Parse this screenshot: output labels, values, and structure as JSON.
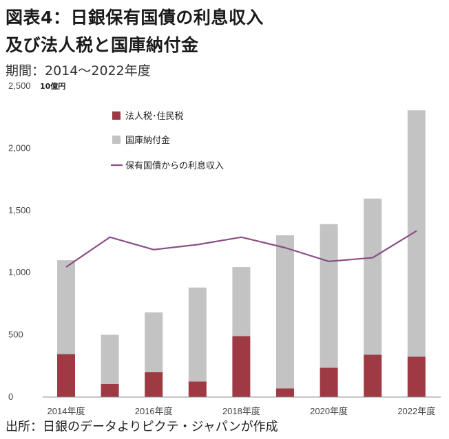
{
  "title_line1": "図表4：日銀保有国債の利息収入",
  "title_line2": "及び法人税と国庫納付金",
  "subtitle": "期間：2014～2022年度",
  "source": "出所：日銀のデータよりピクテ・ジャパンが作成",
  "chart_data": {
    "type": "bar",
    "stacked": true,
    "unit_label": "10億円",
    "categories": [
      "2014年度",
      "2015年度",
      "2016年度",
      "2017年度",
      "2018年度",
      "2019年度",
      "2020年度",
      "2021年度",
      "2022年度"
    ],
    "x_tick_labels": [
      "2014年度",
      "",
      "2016年度",
      "",
      "2018年度",
      "",
      "2020年度",
      "",
      "2022年度"
    ],
    "ylim": [
      0,
      2500
    ],
    "y_ticks": [
      0,
      500,
      1000,
      1500,
      2000,
      2500
    ],
    "y_tick_labels": [
      "0",
      "500",
      "1,000",
      "1,500",
      "2,000",
      "2,500"
    ],
    "series": [
      {
        "name": "法人税･住民税",
        "kind": "bar",
        "color": "#9e3a44",
        "values": [
          345,
          105,
          200,
          125,
          490,
          70,
          235,
          340,
          325
        ]
      },
      {
        "name": "国庫納付金",
        "kind": "bar",
        "color": "#c3c3c3",
        "values": [
          755,
          395,
          480,
          755,
          555,
          1230,
          1155,
          1255,
          1980
        ]
      },
      {
        "name": "保有国債からの利息収入",
        "kind": "line",
        "color": "#8a4f86",
        "values": [
          1045,
          1285,
          1185,
          1225,
          1285,
          1200,
          1090,
          1120,
          1335
        ]
      }
    ],
    "legend_position": "top-left",
    "grid": false
  }
}
